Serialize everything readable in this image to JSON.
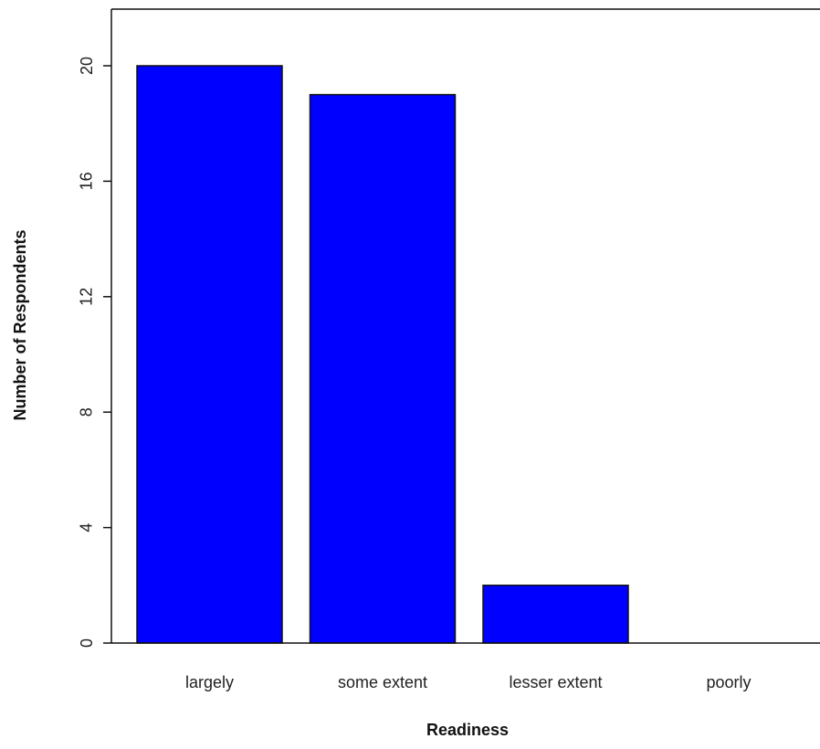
{
  "chart_data": {
    "type": "bar",
    "title": "",
    "xlabel": "Readiness",
    "ylabel": "Number of Respondents",
    "categories": [
      "largely",
      "some extent",
      "lesser extent",
      "poorly"
    ],
    "values": [
      20,
      19,
      2,
      0
    ],
    "ylim": [
      0,
      21
    ],
    "yticks": [
      "0",
      "4",
      "8",
      "12",
      "16",
      "20"
    ],
    "bar_color": "#0000ff",
    "grid": false,
    "legend": "none"
  }
}
